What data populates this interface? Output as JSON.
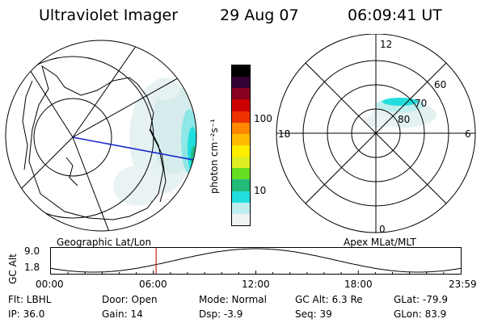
{
  "header": {
    "title": "Ultraviolet Imager",
    "date": "29 Aug 07",
    "time": "06:09:41  UT"
  },
  "colorbar": {
    "label": "photon cm⁻²s⁻¹",
    "ticks": [
      "100",
      "10"
    ],
    "colors": [
      "#eef4f4",
      "#bfeeee",
      "#22dddd",
      "#22bb77",
      "#66dd22",
      "#ddee22",
      "#ffee00",
      "#ffbb00",
      "#ff8800",
      "#ee3300",
      "#cc0000",
      "#880022",
      "#330033",
      "#000000"
    ]
  },
  "polar": {
    "mlt_labels": {
      "top": "12",
      "left": "18",
      "right": "6",
      "bottom": "0"
    },
    "lat_labels": [
      "60",
      "70",
      "80"
    ]
  },
  "timeline": {
    "left_label": "Geographic Lat/Lon",
    "right_label": "Apex MLat/MLT",
    "axis_name": "GC Alt",
    "y_top": "9.0",
    "y_bottom": "1.8",
    "ticks": [
      "00:00",
      "06:00",
      "12:00",
      "18:00",
      "23:59"
    ],
    "current_hour": 6.16
  },
  "info": {
    "flt": "Flt: LBHL",
    "ip": "IP: 36.0",
    "door": "Door: Open",
    "gain": "Gain: 14",
    "mode": "Mode: Normal",
    "dsp": "Dsp:    -3.9",
    "gcalt": "GC Alt: 6.3 Re",
    "seq": "Seq: 39",
    "glat": "GLat:  -79.9",
    "glon": "GLon:  83.9"
  }
}
